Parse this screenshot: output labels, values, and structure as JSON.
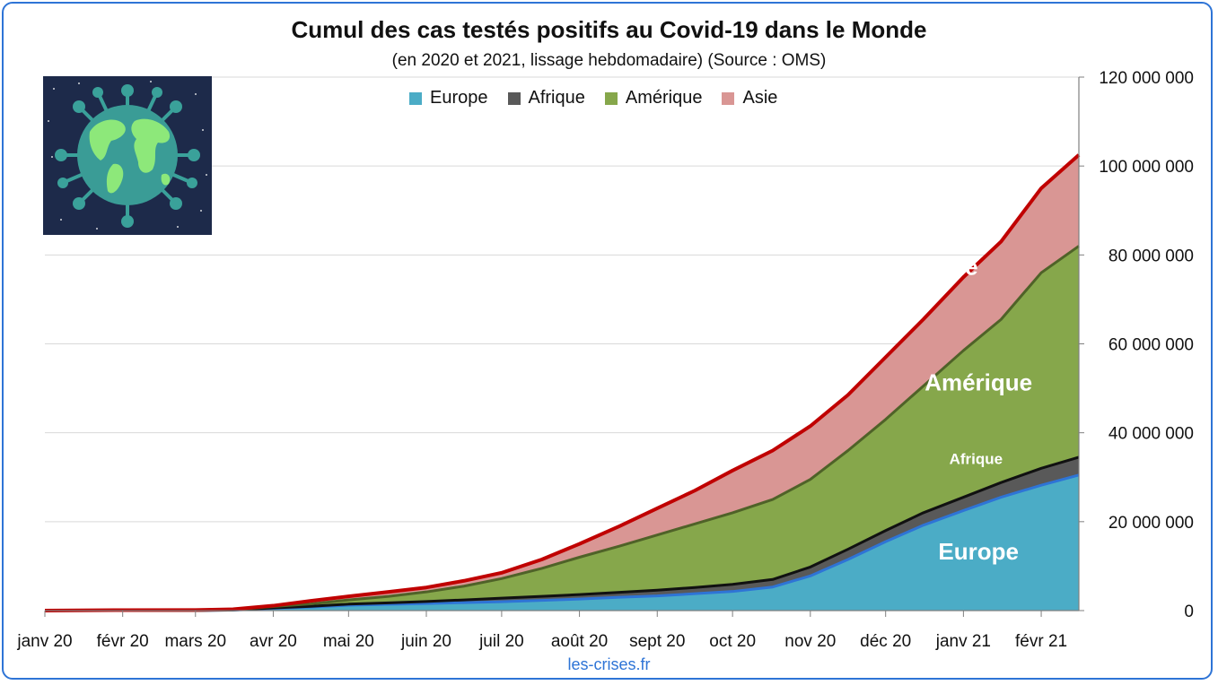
{
  "source_label": "les-crises.fr",
  "colors": {
    "europe": "#4bacc6",
    "afrique": "#595959",
    "amerique": "#86a74b",
    "asie": "#d99694",
    "europe_line": "#2e74d6",
    "afrique_line": "#111111",
    "amerique_line": "#4f6228",
    "asie_line": "#c00000",
    "frame": "#2e74d6"
  },
  "emblem": {
    "icon": "globe-virus-icon"
  },
  "chart_data": {
    "type": "area",
    "stacked": true,
    "title": "Cumul des cas testés positifs au Covid-19 dans le Monde",
    "subtitle": "(en 2020 et 2021, lissage hebdomadaire) (Source : OMS)",
    "x_ticks": [
      "janv 20",
      "févr 20",
      "mars 20",
      "avr 20",
      "mai 20",
      "juin 20",
      "juil 20",
      "août 20",
      "sept 20",
      "oct 20",
      "nov 20",
      "déc 20",
      "janv 21",
      "févr 21"
    ],
    "x_tick_days": [
      0,
      31,
      60,
      91,
      121,
      152,
      182,
      213,
      244,
      274,
      305,
      335,
      366,
      397
    ],
    "x_range_days": [
      0,
      412
    ],
    "y_axis_side": "right",
    "ylim": [
      0,
      120000000
    ],
    "y_ticks": [
      0,
      20000000,
      40000000,
      60000000,
      80000000,
      100000000,
      120000000
    ],
    "y_tick_labels": [
      "0",
      "20 000 000",
      "40 000 000",
      "60 000 000",
      "80 000 000",
      "100 000 000",
      "120 000 000"
    ],
    "grid": true,
    "legend": "top-center",
    "x_days": [
      0,
      31,
      60,
      75,
      91,
      106,
      121,
      137,
      152,
      167,
      182,
      198,
      213,
      229,
      244,
      259,
      274,
      290,
      305,
      320,
      335,
      350,
      366,
      381,
      397,
      412
    ],
    "series": [
      {
        "name": "Europe",
        "key": "europe",
        "cumulative": [
          0,
          0,
          0.02,
          0.1,
          0.5,
          0.8,
          1.2,
          1.4,
          1.6,
          1.8,
          2.0,
          2.3,
          2.6,
          3.0,
          3.3,
          3.8,
          4.3,
          5.3,
          7.8,
          11.5,
          15.5,
          19.2,
          22.5,
          25.5,
          28.2,
          30.5
        ],
        "values_millions": [
          0,
          0,
          0.02,
          0.1,
          0.5,
          0.8,
          1.2,
          1.4,
          1.6,
          1.8,
          2.0,
          2.3,
          2.6,
          3.0,
          3.3,
          3.8,
          4.3,
          5.3,
          7.8,
          11.5,
          15.5,
          19.2,
          22.5,
          25.5,
          28.2,
          30.5
        ]
      },
      {
        "name": "Afrique",
        "key": "afrique",
        "cumulative": [
          0,
          0,
          0.02,
          0.12,
          0.6,
          0.95,
          1.45,
          1.75,
          2.05,
          2.4,
          2.8,
          3.2,
          3.6,
          4.1,
          4.6,
          5.2,
          5.9,
          7.0,
          9.8,
          13.8,
          18.0,
          22.0,
          25.5,
          28.8,
          32.0,
          34.5
        ],
        "values_millions": [
          0,
          0,
          0,
          0.02,
          0.1,
          0.15,
          0.25,
          0.35,
          0.45,
          0.6,
          0.8,
          0.9,
          1.0,
          1.1,
          1.3,
          1.4,
          1.6,
          1.7,
          2.0,
          2.3,
          2.5,
          2.8,
          3.0,
          3.3,
          3.8,
          4.0
        ]
      },
      {
        "name": "Amérique",
        "key": "amerique",
        "cumulative": [
          0,
          0,
          0.05,
          0.2,
          0.9,
          1.5,
          2.4,
          3.2,
          4.2,
          5.5,
          7.2,
          9.5,
          12.0,
          14.5,
          17.0,
          19.5,
          22.0,
          25.0,
          29.5,
          36.0,
          43.0,
          50.5,
          58.5,
          65.5,
          76.0,
          82.0
        ],
        "values_millions": [
          0,
          0,
          0.03,
          0.08,
          0.3,
          0.55,
          0.95,
          1.45,
          2.15,
          3.1,
          4.4,
          6.3,
          8.4,
          10.4,
          12.4,
          14.3,
          16.1,
          18.0,
          19.7,
          22.2,
          25.0,
          28.5,
          33.0,
          36.7,
          44.0,
          47.5
        ]
      },
      {
        "name": "Asie",
        "key": "asie",
        "cumulative": [
          0,
          0.1,
          0.12,
          0.3,
          1.1,
          2.2,
          3.2,
          4.2,
          5.2,
          6.7,
          8.5,
          11.5,
          15.0,
          19.0,
          23.0,
          27.0,
          31.5,
          36.0,
          41.5,
          48.5,
          57.0,
          65.5,
          75.0,
          83.0,
          95.0,
          102.5
        ],
        "values_millions": [
          0,
          0.1,
          0.07,
          0.1,
          0.2,
          0.7,
          0.8,
          1.0,
          1.0,
          1.2,
          1.3,
          2.0,
          3.0,
          4.5,
          6.0,
          7.5,
          9.5,
          11.0,
          12.0,
          12.5,
          14.0,
          15.0,
          16.5,
          17.5,
          19.0,
          20.5
        ]
      }
    ],
    "value_unit": "millions",
    "annotations": [
      {
        "text": "Asie",
        "series": "asie",
        "day": 362,
        "value_millions": 75.5,
        "size": "large"
      },
      {
        "text": "Amérique",
        "series": "amerique",
        "day": 372,
        "value_millions": 49.5,
        "size": "large"
      },
      {
        "text": "Afrique",
        "series": "afrique",
        "day": 371,
        "value_millions": 33.0,
        "size": "small"
      },
      {
        "text": "Europe",
        "series": "europe",
        "day": 372,
        "value_millions": 11.5,
        "size": "large"
      }
    ]
  }
}
